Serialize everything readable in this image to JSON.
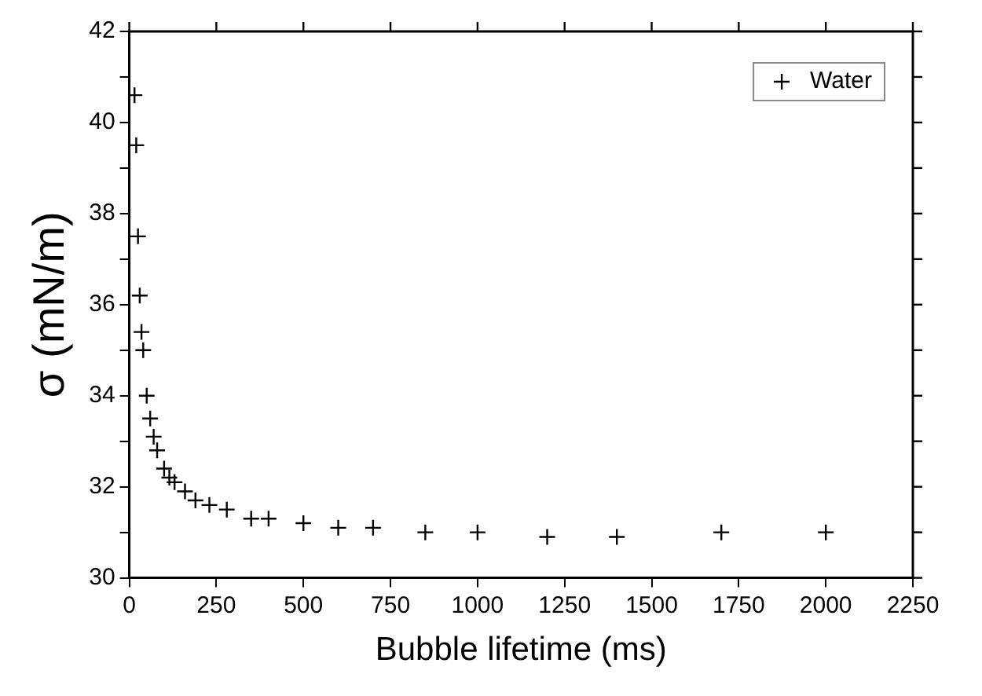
{
  "chart_data": {
    "type": "scatter",
    "xlabel": "Bubble lifetime (ms)",
    "ylabel": "σ (mN/m)",
    "series": [
      {
        "name": "Water",
        "color": "#000000",
        "x": [
          15,
          20,
          25,
          30,
          35,
          40,
          50,
          60,
          70,
          80,
          100,
          115,
          130,
          160,
          190,
          230,
          280,
          350,
          400,
          500,
          600,
          700,
          850,
          1000,
          1200,
          1400,
          1700,
          2000
        ],
        "values": [
          40.6,
          39.5,
          37.5,
          36.2,
          35.4,
          35.0,
          34.0,
          33.5,
          33.1,
          32.8,
          32.4,
          32.2,
          32.1,
          31.9,
          31.7,
          31.6,
          31.5,
          31.3,
          31.3,
          31.2,
          31.1,
          31.1,
          31.0,
          31.0,
          30.9,
          30.9,
          31.0,
          31.0
        ]
      }
    ],
    "xlim": [
      0,
      2250
    ],
    "xticks": [
      0,
      250,
      500,
      750,
      1000,
      1250,
      1500,
      1750,
      2000,
      2250
    ],
    "ylim": [
      30,
      42
    ],
    "yticks": [
      30,
      {
        "value": 31,
        "label": null
      },
      32,
      {
        "value": 33,
        "label": null
      },
      34,
      {
        "value": 35,
        "label": null
      },
      36,
      {
        "value": 37,
        "label": null
      },
      38,
      {
        "value": 39,
        "label": null
      },
      40,
      {
        "value": 41,
        "label": null
      },
      42
    ],
    "grid": false,
    "legend": "top right",
    "marker": "cross"
  }
}
